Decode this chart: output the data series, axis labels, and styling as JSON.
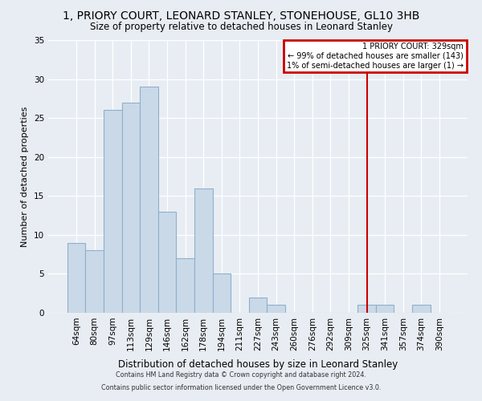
{
  "title1": "1, PRIORY COURT, LEONARD STANLEY, STONEHOUSE, GL10 3HB",
  "title2": "Size of property relative to detached houses in Leonard Stanley",
  "xlabel": "Distribution of detached houses by size in Leonard Stanley",
  "ylabel": "Number of detached properties",
  "bin_labels": [
    "64sqm",
    "80sqm",
    "97sqm",
    "113sqm",
    "129sqm",
    "146sqm",
    "162sqm",
    "178sqm",
    "194sqm",
    "211sqm",
    "227sqm",
    "243sqm",
    "260sqm",
    "276sqm",
    "292sqm",
    "309sqm",
    "325sqm",
    "341sqm",
    "357sqm",
    "374sqm",
    "390sqm"
  ],
  "bar_values": [
    9,
    8,
    26,
    27,
    29,
    13,
    7,
    16,
    5,
    0,
    2,
    1,
    0,
    0,
    0,
    0,
    1,
    1,
    0,
    1,
    0
  ],
  "bar_color": "#cad9e8",
  "bar_edge_color": "#8fb0cc",
  "background_color": "#e8edf3",
  "grid_color": "#ffffff",
  "vline_x_index": 16,
  "vline_color": "#cc0000",
  "legend_title": "1 PRIORY COURT: 329sqm",
  "legend_line1": "← 99% of detached houses are smaller (143)",
  "legend_line2": "1% of semi-detached houses are larger (1) →",
  "legend_box_color": "#cc0000",
  "ylim": [
    0,
    35
  ],
  "yticks": [
    0,
    5,
    10,
    15,
    20,
    25,
    30,
    35
  ],
  "footer1": "Contains HM Land Registry data © Crown copyright and database right 2024.",
  "footer2": "Contains public sector information licensed under the Open Government Licence v3.0."
}
